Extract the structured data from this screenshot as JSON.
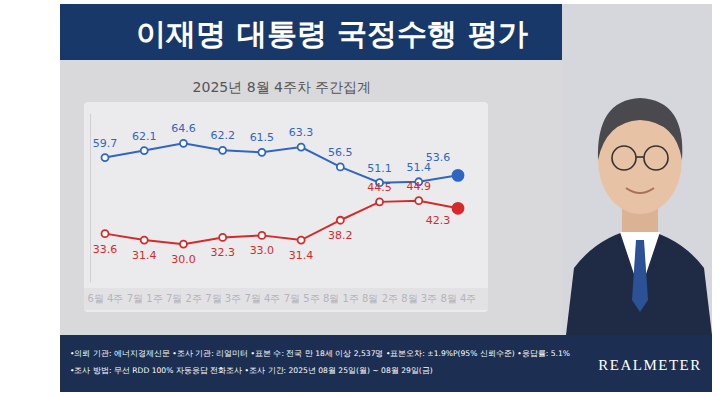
{
  "chart_data": {
    "type": "line",
    "title": "이재명 대통령 국정수행 평가",
    "subtitle": "2025년 8월 4주차 주간집계",
    "categories": [
      "6월 4주",
      "7월 1주",
      "7월 2주",
      "7월 3주",
      "7월 4주",
      "7월 5주",
      "8월 1주",
      "8월 2주",
      "8월 3주",
      "8월 4주"
    ],
    "series": [
      {
        "color": "#2f66c4",
        "marker": "circle",
        "values": [
          59.7,
          62.1,
          64.6,
          62.2,
          61.5,
          63.3,
          56.5,
          51.1,
          51.4,
          53.6
        ],
        "value_labels": [
          "59.7",
          "62.1",
          "64.6",
          "62.2",
          "61.5",
          "63.3",
          "56.5",
          "51.1",
          "51.4",
          "53.6"
        ]
      },
      {
        "color": "#d62a2a",
        "marker": "circle",
        "values": [
          33.6,
          31.4,
          30.0,
          32.3,
          33.0,
          31.4,
          38.2,
          44.5,
          44.9,
          42.3
        ],
        "value_labels": [
          "33.6",
          "31.4",
          "30.0",
          "32.3",
          "33.0",
          "31.4",
          "38.2",
          "44.5",
          "44.9",
          "42.3"
        ]
      }
    ],
    "ylim": [
      17,
      75
    ],
    "yticks": [],
    "grid": false,
    "data_labels": true,
    "tick_labels": "x",
    "notes": [
      "•의뢰 기관: 에너지경제신문 •조사 기관: 리얼미터 •표본 수: 전국 만 18세 이상 2,537명 •표본오차: ±1.9%P(95% 신뢰수준) •응답률: 5.1%",
      "•조사 방법: 무선 RDD 100% 자동응답 전화조사 •조사 기간: 2025년 08월 25일(월) ~ 08월 29일(금)"
    ],
    "logo": "REALMETER"
  }
}
